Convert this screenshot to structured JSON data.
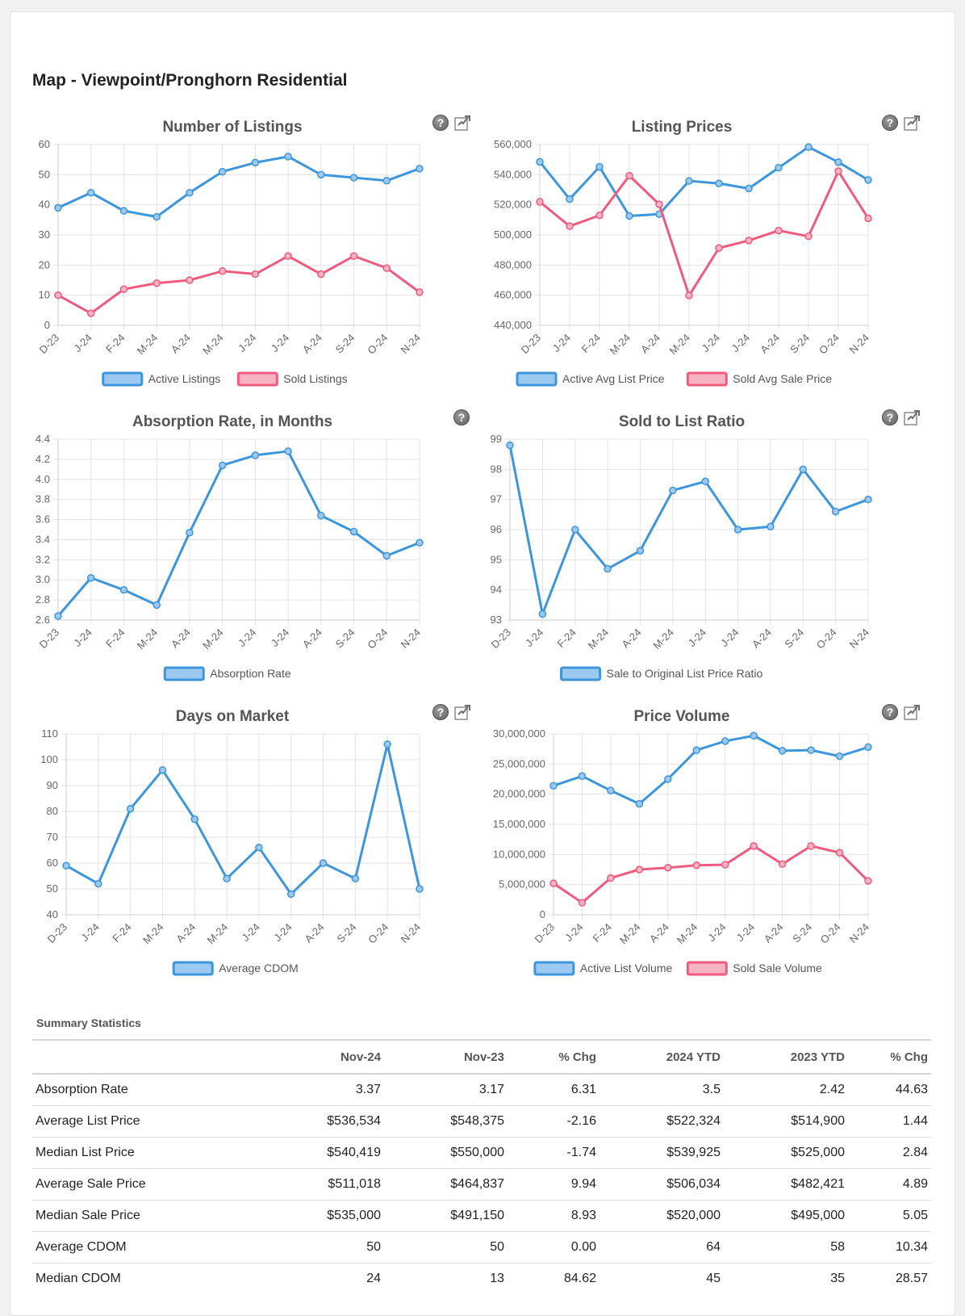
{
  "page": {
    "title": "Map - Viewpoint/Pronghorn Residential"
  },
  "colors": {
    "blue": "#3d96dc",
    "pink": "#ef5b7e",
    "blue_fill": "#9dc9f0",
    "pink_fill": "#f7b3c3"
  },
  "icons": {
    "help": "question-mark-icon",
    "export": "export-chart-icon",
    "help_glyph": "?"
  },
  "chart_data": [
    {
      "id": "listings",
      "type": "line",
      "title": "Number of Listings",
      "categories": [
        "D-23",
        "J-24",
        "F-24",
        "M-24",
        "A-24",
        "M-24",
        "J-24",
        "J-24",
        "A-24",
        "S-24",
        "O-24",
        "N-24"
      ],
      "ylim": [
        0,
        60
      ],
      "yticks": [
        "0",
        "10",
        "20",
        "30",
        "40",
        "50",
        "60"
      ],
      "series": [
        {
          "name": "Active Listings",
          "color": "blue",
          "values": [
            39,
            44,
            38,
            36,
            44,
            51,
            54,
            56,
            50,
            49,
            48,
            52
          ]
        },
        {
          "name": "Sold Listings",
          "color": "pink",
          "values": [
            10,
            4,
            12,
            14,
            15,
            18,
            17,
            23,
            17,
            23,
            19,
            11
          ]
        }
      ],
      "icons": [
        "help",
        "export"
      ]
    },
    {
      "id": "prices",
      "type": "line",
      "title": "Listing Prices",
      "categories": [
        "D-23",
        "J-24",
        "F-24",
        "M-24",
        "A-24",
        "M-24",
        "J-24",
        "J-24",
        "A-24",
        "S-24",
        "O-24",
        "N-24"
      ],
      "ylim": [
        440000,
        560000
      ],
      "yticks": [
        "440,000",
        "460,000",
        "480,000",
        "500,000",
        "520,000",
        "540,000",
        "560,000"
      ],
      "series": [
        {
          "name": "Active Avg List Price",
          "color": "blue",
          "values": [
            548500,
            523800,
            545200,
            512600,
            513800,
            535800,
            534200,
            530800,
            544600,
            558300,
            548300,
            536500
          ]
        },
        {
          "name": "Sold Avg Sale Price",
          "color": "pink",
          "values": [
            522000,
            505800,
            513000,
            539300,
            520300,
            459800,
            491300,
            496300,
            502900,
            499100,
            542300,
            511000
          ]
        }
      ],
      "icons": [
        "help",
        "export"
      ]
    },
    {
      "id": "absorption",
      "type": "line",
      "title": "Absorption Rate, in Months",
      "categories": [
        "D-23",
        "J-24",
        "F-24",
        "M-24",
        "A-24",
        "M-24",
        "J-24",
        "J-24",
        "A-24",
        "S-24",
        "O-24",
        "N-24"
      ],
      "ylim": [
        2.6,
        4.4
      ],
      "yticks": [
        "2.6",
        "2.8",
        "3.0",
        "3.2",
        "3.4",
        "3.6",
        "3.8",
        "4.0",
        "4.2",
        "4.4"
      ],
      "series": [
        {
          "name": "Absorption Rate",
          "color": "blue",
          "values": [
            2.64,
            3.02,
            2.9,
            2.75,
            3.47,
            4.14,
            4.24,
            4.28,
            3.64,
            3.48,
            3.24,
            3.37
          ]
        }
      ],
      "icons": [
        "help"
      ]
    },
    {
      "id": "ratio",
      "type": "line",
      "title": "Sold to List Ratio",
      "categories": [
        "D-23",
        "J-24",
        "F-24",
        "M-24",
        "A-24",
        "M-24",
        "J-24",
        "J-24",
        "A-24",
        "S-24",
        "O-24",
        "N-24"
      ],
      "ylim": [
        93,
        99
      ],
      "yticks": [
        "93",
        "94",
        "95",
        "96",
        "97",
        "98",
        "99"
      ],
      "series": [
        {
          "name": "Sale to Original List Price Ratio",
          "color": "blue",
          "values": [
            98.8,
            93.2,
            96.0,
            94.7,
            95.3,
            97.3,
            97.6,
            96.0,
            96.1,
            98.0,
            96.6,
            97.0
          ]
        }
      ],
      "icons": [
        "help",
        "export"
      ]
    },
    {
      "id": "dom",
      "type": "line",
      "title": "Days on Market",
      "categories": [
        "D-23",
        "J-24",
        "F-24",
        "M-24",
        "A-24",
        "M-24",
        "J-24",
        "J-24",
        "A-24",
        "S-24",
        "O-24",
        "N-24"
      ],
      "ylim": [
        40,
        110
      ],
      "yticks": [
        "40",
        "50",
        "60",
        "70",
        "80",
        "90",
        "100",
        "110"
      ],
      "series": [
        {
          "name": "Average CDOM",
          "color": "blue",
          "values": [
            59,
            52,
            81,
            96,
            77,
            54,
            66,
            48,
            60,
            54,
            106,
            50
          ]
        }
      ],
      "icons": [
        "help",
        "export"
      ]
    },
    {
      "id": "volume",
      "type": "line",
      "title": "Price Volume",
      "categories": [
        "D-23",
        "J-24",
        "F-24",
        "M-24",
        "A-24",
        "M-24",
        "J-24",
        "J-24",
        "A-24",
        "S-24",
        "O-24",
        "N-24"
      ],
      "ylim": [
        0,
        30000000
      ],
      "yticks": [
        "0",
        "5,000,000",
        "10,000,000",
        "15,000,000",
        "20,000,000",
        "25,000,000",
        "30,000,000"
      ],
      "series": [
        {
          "name": "Active List Volume",
          "color": "blue",
          "values": [
            21400000,
            23000000,
            20600000,
            18400000,
            22500000,
            27300000,
            28800000,
            29700000,
            27200000,
            27300000,
            26300000,
            27800000
          ]
        },
        {
          "name": "Sold Sale Volume",
          "color": "pink",
          "values": [
            5200000,
            2000000,
            6100000,
            7500000,
            7800000,
            8200000,
            8300000,
            11400000,
            8400000,
            11400000,
            10300000,
            5600000
          ]
        }
      ],
      "icons": [
        "help",
        "export"
      ]
    }
  ],
  "summary": {
    "title": "Summary Statistics",
    "headers": [
      "",
      "Nov-24",
      "Nov-23",
      "% Chg",
      "2024 YTD",
      "2023 YTD",
      "% Chg"
    ],
    "rows": [
      [
        "Absorption Rate",
        "3.37",
        "3.17",
        "6.31",
        "3.5",
        "2.42",
        "44.63"
      ],
      [
        "Average List Price",
        "$536,534",
        "$548,375",
        "-2.16",
        "$522,324",
        "$514,900",
        "1.44"
      ],
      [
        "Median List Price",
        "$540,419",
        "$550,000",
        "-1.74",
        "$539,925",
        "$525,000",
        "2.84"
      ],
      [
        "Average Sale Price",
        "$511,018",
        "$464,837",
        "9.94",
        "$506,034",
        "$482,421",
        "4.89"
      ],
      [
        "Median Sale Price",
        "$535,000",
        "$491,150",
        "8.93",
        "$520,000",
        "$495,000",
        "5.05"
      ],
      [
        "Average CDOM",
        "50",
        "50",
        "0.00",
        "64",
        "58",
        "10.34"
      ],
      [
        "Median CDOM",
        "24",
        "13",
        "84.62",
        "45",
        "35",
        "28.57"
      ]
    ]
  }
}
